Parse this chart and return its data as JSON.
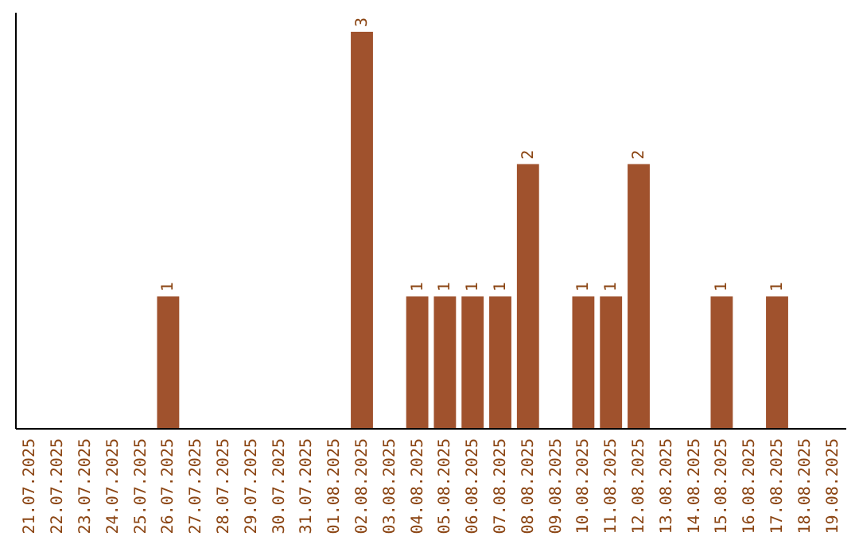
{
  "chart_data": {
    "type": "bar",
    "categories": [
      "21.07.2025",
      "22.07.2025",
      "23.07.2025",
      "24.07.2025",
      "25.07.2025",
      "26.07.2025",
      "27.07.2025",
      "28.07.2025",
      "29.07.2025",
      "30.07.2025",
      "31.07.2025",
      "01.08.2025",
      "02.08.2025",
      "03.08.2025",
      "04.08.2025",
      "05.08.2025",
      "06.08.2025",
      "07.08.2025",
      "08.08.2025",
      "09.08.2025",
      "10.08.2025",
      "11.08.2025",
      "12.08.2025",
      "13.08.2025",
      "14.08.2025",
      "15.08.2025",
      "16.08.2025",
      "17.08.2025",
      "18.08.2025",
      "19.08.2025"
    ],
    "values": [
      0,
      0,
      0,
      0,
      0,
      1,
      0,
      0,
      0,
      0,
      0,
      0,
      3,
      0,
      1,
      1,
      1,
      1,
      2,
      0,
      1,
      1,
      2,
      0,
      0,
      1,
      0,
      1,
      0,
      0
    ],
    "value_labels": [
      null,
      null,
      null,
      null,
      null,
      "1",
      null,
      null,
      null,
      null,
      null,
      null,
      "3",
      null,
      "1",
      "1",
      "1",
      "1",
      "2",
      null,
      "1",
      "1",
      "2",
      null,
      null,
      "1",
      null,
      "1",
      null,
      null
    ],
    "color": "#a0522d"
  }
}
